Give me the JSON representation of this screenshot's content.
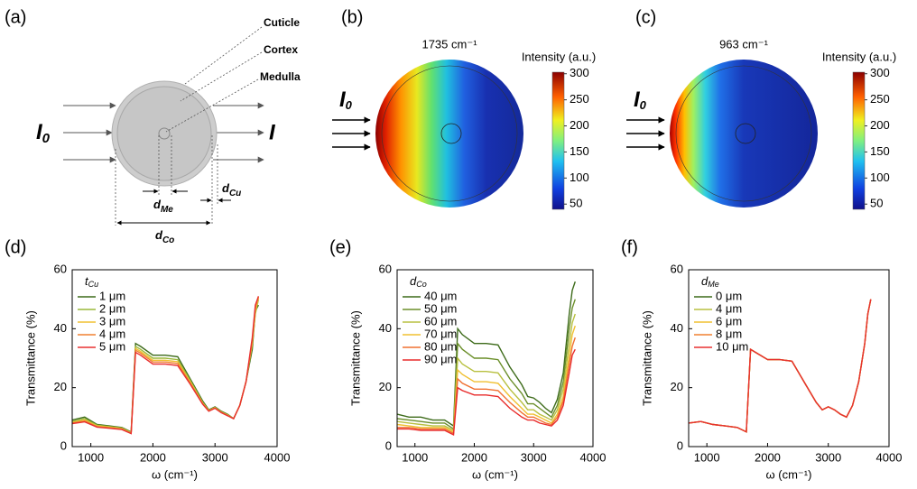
{
  "diagram": {
    "panel_label": "(a)",
    "cuticle": "Cuticle",
    "cortex": "Cortex",
    "medulla": "Medulla",
    "incident": {
      "symbol": "I",
      "subscript": "0"
    },
    "transmitted": "I",
    "d_me": {
      "symbol": "d",
      "subscript": "Me"
    },
    "d_cu": {
      "symbol": "d",
      "subscript": "Cu"
    },
    "d_co": {
      "symbol": "d",
      "subscript": "Co"
    }
  },
  "maps": [
    {
      "panel_label": "(b)",
      "title": "1735 cm⁻¹",
      "colorbar_label": "Intensity (a.u.)",
      "clim": [
        40,
        303
      ],
      "cticks": [
        50,
        100,
        150,
        200,
        250,
        300
      ]
    },
    {
      "panel_label": "(c)",
      "title": "963 cm⁻¹",
      "colorbar_label": "Intensity (a.u.)",
      "clim": [
        40,
        303
      ],
      "cticks": [
        50,
        100,
        150,
        200,
        250,
        300
      ]
    }
  ],
  "chart_data": [
    {
      "type": "line",
      "panel_label": "(d)",
      "xlabel": "ω (cm⁻¹)",
      "ylabel": "Transmittance (%)",
      "legend_title": {
        "symbol": "t",
        "subscript": "Cu"
      },
      "xlim": [
        700,
        4000
      ],
      "ylim": [
        0,
        60
      ],
      "xticks": [
        1000,
        2000,
        3000,
        4000
      ],
      "yticks": [
        0,
        20,
        40,
        60
      ],
      "x": [
        700,
        900,
        1100,
        1300,
        1500,
        1650,
        1720,
        1800,
        2000,
        2200,
        2400,
        2600,
        2800,
        2900,
        3000,
        3100,
        3200,
        3300,
        3400,
        3500,
        3600,
        3650,
        3700
      ],
      "series": [
        {
          "name": "1 μm",
          "color": "#3d6b1a",
          "values": [
            9,
            10,
            7.5,
            7,
            6.5,
            5,
            35,
            34,
            31,
            31,
            30.5,
            23,
            15.5,
            12.5,
            13.5,
            12,
            11,
            9.5,
            14,
            22,
            33,
            46,
            48
          ]
        },
        {
          "name": "2 μm",
          "color": "#9ab83a",
          "values": [
            8.5,
            9.5,
            7.3,
            6.8,
            6.3,
            4.8,
            34,
            33,
            30,
            30,
            29.5,
            22.5,
            15,
            12.3,
            13.3,
            11.8,
            10.8,
            9.5,
            14,
            22,
            35,
            45,
            50
          ]
        },
        {
          "name": "3 μm",
          "color": "#f0c030",
          "values": [
            8.2,
            9,
            7,
            6.6,
            6.1,
            4.6,
            33.3,
            32.3,
            29.3,
            29.3,
            28.8,
            22,
            14.8,
            12.2,
            13.2,
            11.7,
            10.7,
            9.5,
            14,
            22,
            35,
            46,
            50.5
          ]
        },
        {
          "name": "4 μm",
          "color": "#f08030",
          "values": [
            8,
            8.7,
            6.8,
            6.4,
            6,
            4.5,
            32.7,
            31.7,
            28.7,
            28.7,
            28.2,
            21.6,
            14.6,
            12.1,
            13.1,
            11.6,
            10.6,
            9.5,
            14,
            22,
            36,
            47,
            51
          ]
        },
        {
          "name": "5 μm",
          "color": "#e83030",
          "values": [
            7.8,
            8.4,
            6.6,
            6.2,
            5.8,
            4.4,
            32,
            31,
            28,
            28,
            27.5,
            21.2,
            14.4,
            12,
            13,
            11.5,
            10.5,
            9.5,
            14,
            22,
            37,
            48,
            51
          ]
        }
      ]
    },
    {
      "type": "line",
      "panel_label": "(e)",
      "xlabel": "ω (cm⁻¹)",
      "ylabel": "Transmittance (%)",
      "legend_title": {
        "symbol": "d",
        "subscript": "Co"
      },
      "xlim": [
        700,
        4000
      ],
      "ylim": [
        0,
        60
      ],
      "xticks": [
        1000,
        2000,
        3000,
        4000
      ],
      "yticks": [
        0,
        20,
        40,
        60
      ],
      "x": [
        700,
        900,
        1100,
        1300,
        1500,
        1650,
        1720,
        1800,
        2000,
        2200,
        2400,
        2600,
        2800,
        2900,
        3000,
        3100,
        3200,
        3300,
        3400,
        3500,
        3600,
        3650,
        3700
      ],
      "series": [
        {
          "name": "40 μm",
          "color": "#3d6b1a",
          "values": [
            11,
            10,
            10,
            9,
            9,
            7,
            40,
            38,
            35,
            35,
            34.5,
            27,
            21,
            17,
            16.5,
            15,
            13,
            11.5,
            16,
            25,
            45,
            53,
            56
          ]
        },
        {
          "name": "50 μm",
          "color": "#6b8f2a",
          "values": [
            9.5,
            9,
            8.5,
            8,
            8,
            6,
            35,
            33,
            30,
            30,
            29.5,
            23,
            18,
            14.5,
            14.5,
            13,
            11.5,
            10,
            14,
            22,
            40,
            47,
            50
          ]
        },
        {
          "name": "60 μm",
          "color": "#b8c040",
          "values": [
            8.5,
            8,
            7.5,
            7,
            7,
            5.5,
            30,
            28,
            25.5,
            25.5,
            25,
            19.5,
            15,
            12.5,
            12.5,
            11,
            10,
            9,
            12.5,
            19.5,
            35,
            42,
            45
          ]
        },
        {
          "name": "70 μm",
          "color": "#f0c030",
          "values": [
            7.5,
            7,
            6.5,
            6.5,
            6.5,
            5,
            26,
            24.5,
            22,
            22,
            21.5,
            17,
            13,
            11,
            11,
            10,
            9,
            8,
            11,
            17,
            31,
            38,
            41
          ]
        },
        {
          "name": "80 μm",
          "color": "#f07030",
          "values": [
            6.5,
            6.5,
            6,
            6,
            6,
            4.5,
            23,
            21.5,
            19.5,
            19.5,
            19,
            15,
            11.5,
            10,
            10,
            9,
            8,
            7.5,
            10,
            15.5,
            28,
            34,
            37
          ]
        },
        {
          "name": "90 μm",
          "color": "#e82a2a",
          "values": [
            6,
            6,
            5.5,
            5.5,
            5.5,
            4,
            20,
            19,
            17.5,
            17.5,
            17,
            13,
            10,
            9,
            9,
            8,
            7.5,
            7,
            9,
            14,
            25,
            31,
            33
          ]
        }
      ]
    },
    {
      "type": "line",
      "panel_label": "(f)",
      "xlabel": "ω (cm⁻¹)",
      "ylabel": "Transmittance (%)",
      "legend_title": {
        "symbol": "d",
        "subscript": "Me"
      },
      "xlim": [
        700,
        4000
      ],
      "ylim": [
        0,
        60
      ],
      "xticks": [
        1000,
        2000,
        3000,
        4000
      ],
      "yticks": [
        0,
        20,
        40,
        60
      ],
      "x": [
        700,
        900,
        1100,
        1300,
        1500,
        1650,
        1720,
        1800,
        2000,
        2200,
        2400,
        2600,
        2800,
        2900,
        3000,
        3100,
        3200,
        3300,
        3400,
        3500,
        3600,
        3650,
        3700
      ],
      "series": [
        {
          "name": "0 μm",
          "color": "#3d6b1a",
          "values": [
            8,
            8.5,
            7.5,
            7,
            6.5,
            5,
            33,
            32,
            29.5,
            29.5,
            29,
            22,
            15,
            12.5,
            13.5,
            12.5,
            11,
            10,
            14,
            22,
            35,
            45,
            50
          ]
        },
        {
          "name": "4 μm",
          "color": "#b8c040",
          "values": [
            8,
            8.5,
            7.5,
            7,
            6.5,
            5,
            33,
            32,
            29.5,
            29.5,
            29,
            22,
            15,
            12.5,
            13.5,
            12.5,
            11,
            10,
            14,
            22,
            35,
            45,
            50
          ]
        },
        {
          "name": "6 μm",
          "color": "#f0c030",
          "values": [
            8,
            8.5,
            7.5,
            7,
            6.5,
            5,
            33,
            32,
            29.5,
            29.5,
            29,
            22,
            15,
            12.5,
            13.5,
            12.5,
            11,
            10,
            14,
            22,
            35,
            45,
            50
          ]
        },
        {
          "name": "8 μm",
          "color": "#f08030",
          "values": [
            8,
            8.5,
            7.5,
            7,
            6.5,
            5,
            33,
            32,
            29.5,
            29.5,
            29,
            22,
            15,
            12.5,
            13.5,
            12.5,
            11,
            10,
            14,
            22,
            35,
            45,
            50
          ]
        },
        {
          "name": "10 μm",
          "color": "#e83030",
          "values": [
            8,
            8.5,
            7.5,
            7,
            6.5,
            5,
            33,
            32,
            29.5,
            29.5,
            29,
            22,
            15,
            12.5,
            13.5,
            12.5,
            11,
            10,
            14,
            22,
            35,
            45,
            50
          ]
        }
      ]
    }
  ]
}
